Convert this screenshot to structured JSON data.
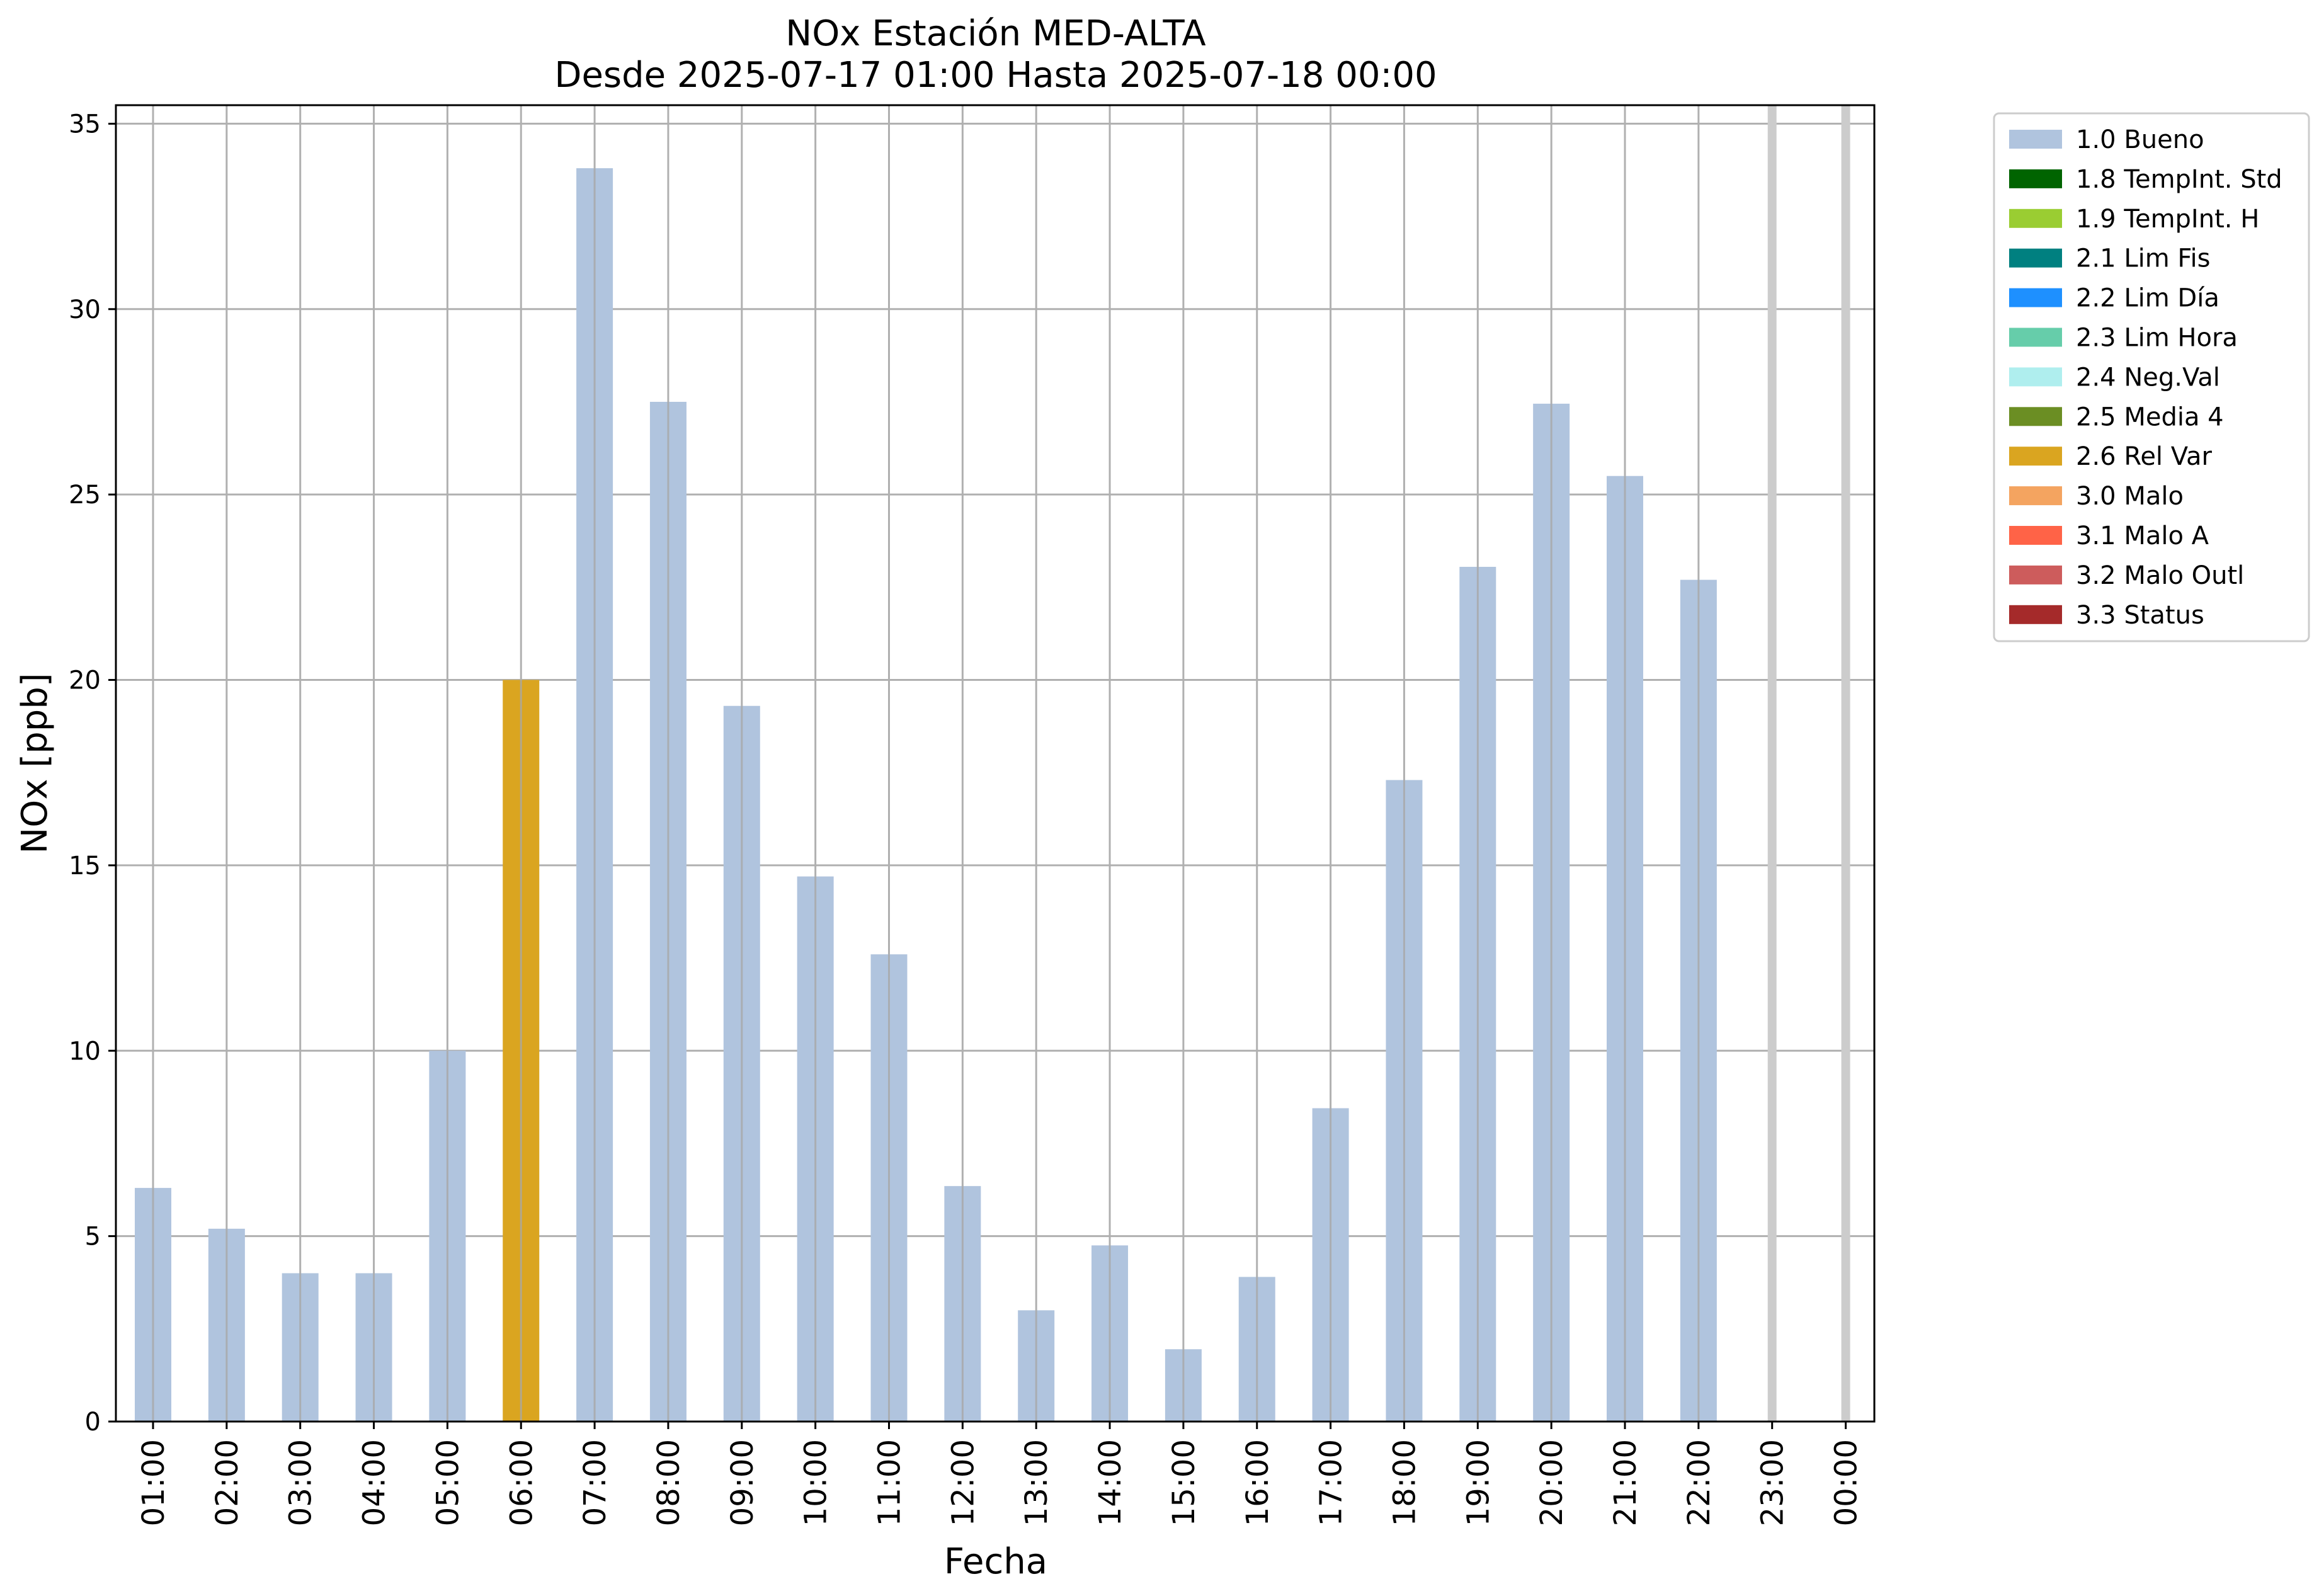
{
  "chart_data": {
    "type": "bar",
    "title": "NOx Estación MED-ALTA",
    "subtitle": "Desde 2025-07-17 01:00 Hasta 2025-07-18 00:00",
    "xlabel": "Fecha",
    "ylabel": "NOx [ppb]",
    "ylim": [
      0,
      35.5
    ],
    "yticks": [
      0,
      5,
      10,
      15,
      20,
      25,
      30,
      35
    ],
    "grid": true,
    "legend_position": "outside-right",
    "categories": [
      "01:00",
      "02:00",
      "03:00",
      "04:00",
      "05:00",
      "06:00",
      "07:00",
      "08:00",
      "09:00",
      "10:00",
      "11:00",
      "12:00",
      "13:00",
      "14:00",
      "15:00",
      "16:00",
      "17:00",
      "18:00",
      "19:00",
      "20:00",
      "21:00",
      "22:00",
      "23:00",
      "00:00"
    ],
    "values": [
      6.3,
      5.2,
      4.0,
      4.0,
      10.0,
      20.0,
      33.8,
      27.5,
      19.3,
      14.7,
      12.6,
      6.35,
      3.0,
      4.75,
      1.95,
      3.9,
      8.45,
      17.3,
      23.05,
      27.45,
      25.5,
      22.7,
      null,
      null
    ],
    "flags": [
      "1.0 Bueno",
      "1.0 Bueno",
      "1.0 Bueno",
      "1.0 Bueno",
      "1.0 Bueno",
      "2.6 Rel Var",
      "1.0 Bueno",
      "1.0 Bueno",
      "1.0 Bueno",
      "1.0 Bueno",
      "1.0 Bueno",
      "1.0 Bueno",
      "1.0 Bueno",
      "1.0 Bueno",
      "1.0 Bueno",
      "1.0 Bueno",
      "1.0 Bueno",
      "1.0 Bueno",
      "1.0 Bueno",
      "1.0 Bueno",
      "1.0 Bueno",
      "1.0 Bueno",
      null,
      null
    ],
    "missing_marker_color": "#cccccc",
    "legend": [
      {
        "label": "1.0 Bueno",
        "color": "#b0c4de"
      },
      {
        "label": "1.8 TempInt. Std",
        "color": "#006400"
      },
      {
        "label": "1.9 TempInt. H",
        "color": "#9acd32"
      },
      {
        "label": "2.1 Lim Fis",
        "color": "#008080"
      },
      {
        "label": "2.2 Lim Día",
        "color": "#1e90ff"
      },
      {
        "label": "2.3 Lim Hora",
        "color": "#66cdaa"
      },
      {
        "label": "2.4 Neg.Val",
        "color": "#afeeee"
      },
      {
        "label": "2.5 Media 4",
        "color": "#6b8e23"
      },
      {
        "label": "2.6 Rel Var",
        "color": "#daa520"
      },
      {
        "label": "3.0 Malo",
        "color": "#f4a460"
      },
      {
        "label": "3.1 Malo A",
        "color": "#ff6347"
      },
      {
        "label": "3.2 Malo Outl",
        "color": "#cd5c5c"
      },
      {
        "label": "3.3 Status",
        "color": "#a52a2a"
      }
    ]
  }
}
